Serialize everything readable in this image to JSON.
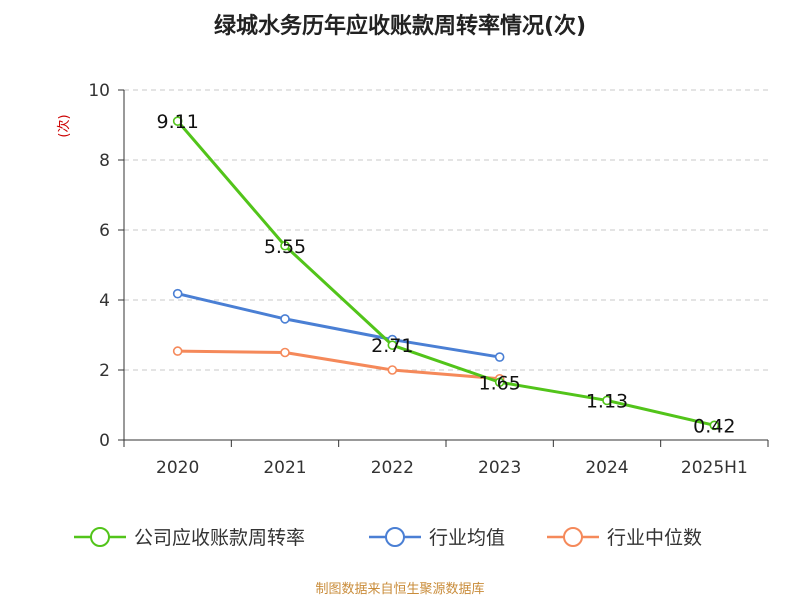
{
  "chart_data": {
    "type": "line",
    "title": "绿城水务历年应收账款周转率情况(次)",
    "ylabel": "(次)",
    "xlabel": "",
    "categories": [
      "2020",
      "2021",
      "2022",
      "2023",
      "2024",
      "2025H1"
    ],
    "ylim": [
      0,
      10
    ],
    "yticks": [
      0,
      2,
      4,
      6,
      8,
      10
    ],
    "grid": true,
    "legend_position": "bottom",
    "series": [
      {
        "name": "公司应收账款周转率",
        "color": "#52c41a",
        "values": [
          9.11,
          5.55,
          2.71,
          1.65,
          1.13,
          0.42
        ],
        "labels": [
          "9.11",
          "5.55",
          "2.71",
          "1.65",
          "1.13",
          "0.42"
        ]
      },
      {
        "name": "行业均值",
        "color": "#4a7fd4",
        "values": [
          4.18,
          3.46,
          2.87,
          2.37,
          null,
          null
        ]
      },
      {
        "name": "行业中位数",
        "color": "#f5895a",
        "values": [
          2.54,
          2.5,
          2.0,
          1.75,
          null,
          null
        ]
      }
    ]
  },
  "footer": {
    "source": "制图数据来自恒生聚源数据库"
  }
}
